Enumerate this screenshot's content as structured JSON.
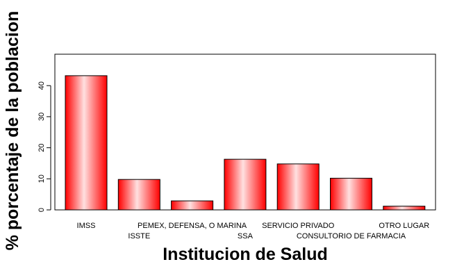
{
  "chart_data": {
    "type": "bar",
    "categories": [
      "IMSS",
      "ISSTE",
      "PEMEX, DEFENSA, O MARINA",
      "SSA",
      "SERVICIO PRIVADO",
      "CONSULTORIO DE FARMACIA",
      "OTRO LUGAR"
    ],
    "values": [
      43.2,
      9.8,
      2.9,
      16.3,
      14.8,
      10.2,
      1.2
    ],
    "xlabel": "Institucion de Salud",
    "ylabel": "% porcentaje de la poblacion",
    "ylim": [
      0,
      50
    ],
    "yticks": [
      0,
      10,
      20,
      30,
      40
    ],
    "bar_color_edge": "#ff0000",
    "bar_color_center": "#ffe0e0",
    "grid": false,
    "legend": "none"
  }
}
